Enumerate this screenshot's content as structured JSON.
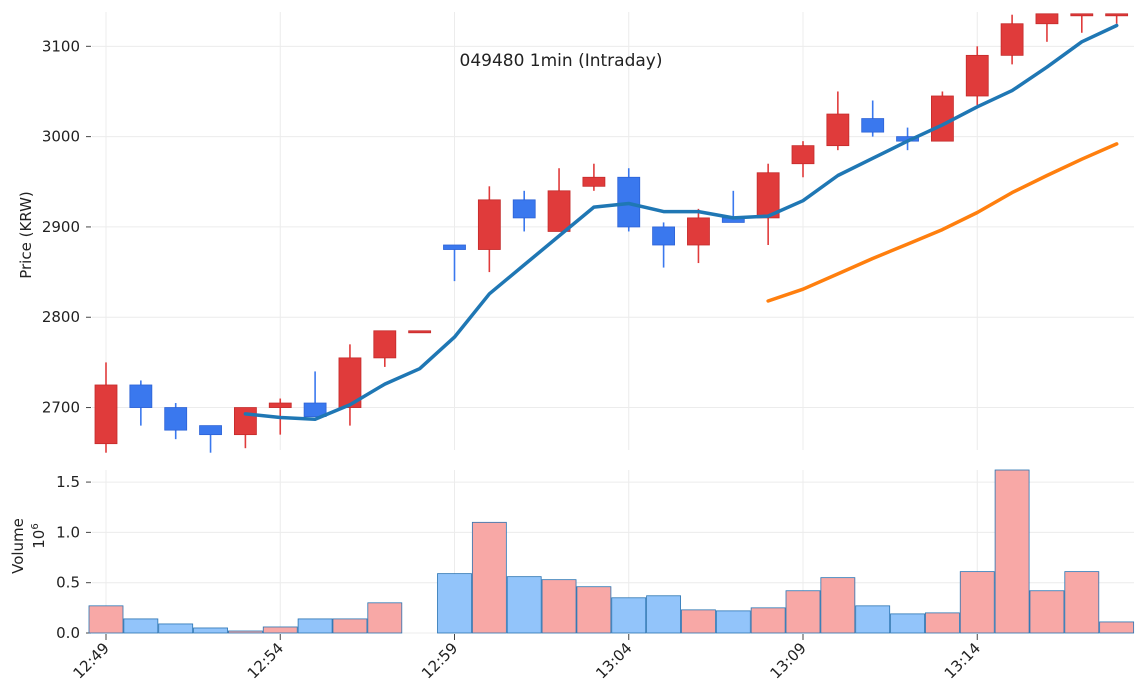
{
  "chart_data": {
    "type": "candlestick",
    "title": "049480 1min (Intraday)",
    "price_ylabel": "Price (KRW)",
    "volume_ylabel": "Volume",
    "volume_scale_label": "10^6",
    "price_yticks": [
      2700,
      2800,
      2900,
      3000,
      3100
    ],
    "price_ylim": [
      2653,
      3138
    ],
    "volume_yticks": [
      0.0,
      0.5,
      1.0,
      1.5
    ],
    "volume_ylim": [
      0,
      1.62
    ],
    "xticks": [
      {
        "index": 0,
        "label": "12:49"
      },
      {
        "index": 5,
        "label": "12:54"
      },
      {
        "index": 10,
        "label": "12:59"
      },
      {
        "index": 15,
        "label": "13:04"
      },
      {
        "index": 20,
        "label": "13:09"
      },
      {
        "index": 25,
        "label": "13:14"
      }
    ],
    "candles": [
      {
        "o": 2660,
        "h": 2750,
        "l": 2650,
        "c": 2725,
        "v": 0.27
      },
      {
        "o": 2725,
        "h": 2730,
        "l": 2680,
        "c": 2700,
        "v": 0.14
      },
      {
        "o": 2700,
        "h": 2705,
        "l": 2665,
        "c": 2675,
        "v": 0.09
      },
      {
        "o": 2680,
        "h": 2680,
        "l": 2650,
        "c": 2670,
        "v": 0.05
      },
      {
        "o": 2670,
        "h": 2700,
        "l": 2655,
        "c": 2700,
        "v": 0.02
      },
      {
        "o": 2700,
        "h": 2710,
        "l": 2670,
        "c": 2705,
        "v": 0.06
      },
      {
        "o": 2705,
        "h": 2740,
        "l": 2690,
        "c": 2690,
        "v": 0.14
      },
      {
        "o": 2700,
        "h": 2770,
        "l": 2680,
        "c": 2755,
        "v": 0.14
      },
      {
        "o": 2755,
        "h": 2785,
        "l": 2745,
        "c": 2785,
        "v": 0.3
      },
      {
        "o": 2785,
        "h": 2785,
        "l": 2785,
        "c": 2785,
        "v": 0.0
      },
      {
        "o": 2880,
        "h": 2880,
        "l": 2840,
        "c": 2875,
        "v": 0.59
      },
      {
        "o": 2875,
        "h": 2945,
        "l": 2850,
        "c": 2930,
        "v": 1.1
      },
      {
        "o": 2930,
        "h": 2940,
        "l": 2895,
        "c": 2910,
        "v": 0.56
      },
      {
        "o": 2895,
        "h": 2965,
        "l": 2895,
        "c": 2940,
        "v": 0.53
      },
      {
        "o": 2945,
        "h": 2970,
        "l": 2940,
        "c": 2955,
        "v": 0.46
      },
      {
        "o": 2955,
        "h": 2965,
        "l": 2895,
        "c": 2900,
        "v": 0.35
      },
      {
        "o": 2900,
        "h": 2905,
        "l": 2855,
        "c": 2880,
        "v": 0.37
      },
      {
        "o": 2880,
        "h": 2920,
        "l": 2860,
        "c": 2910,
        "v": 0.23
      },
      {
        "o": 2910,
        "h": 2940,
        "l": 2905,
        "c": 2905,
        "v": 0.22
      },
      {
        "o": 2910,
        "h": 2970,
        "l": 2880,
        "c": 2960,
        "v": 0.25
      },
      {
        "o": 2970,
        "h": 2995,
        "l": 2955,
        "c": 2990,
        "v": 0.42
      },
      {
        "o": 2990,
        "h": 3050,
        "l": 2985,
        "c": 3025,
        "v": 0.55
      },
      {
        "o": 3020,
        "h": 3040,
        "l": 3000,
        "c": 3005,
        "v": 0.27
      },
      {
        "o": 3000,
        "h": 3010,
        "l": 2985,
        "c": 2995,
        "v": 0.19
      },
      {
        "o": 2995,
        "h": 3050,
        "l": 2995,
        "c": 3045,
        "v": 0.2
      },
      {
        "o": 3045,
        "h": 3100,
        "l": 3035,
        "c": 3090,
        "v": 0.61
      },
      {
        "o": 3090,
        "h": 3135,
        "l": 3080,
        "c": 3125,
        "v": 1.62
      },
      {
        "o": 3125,
        "h": 3136,
        "l": 3105,
        "c": 3136,
        "v": 0.42
      },
      {
        "o": 3136,
        "h": 3136,
        "l": 3115,
        "c": 3136,
        "v": 0.61
      },
      {
        "o": 3136,
        "h": 3136,
        "l": 3125,
        "c": 3136,
        "v": 0.11
      }
    ],
    "series": [
      {
        "name": "MA (short)",
        "color": "#1f77b4",
        "start_index": 4,
        "values": [
          2693,
          2689,
          2687,
          2703,
          2726,
          2743,
          2778,
          2826,
          2858,
          2890,
          2922,
          2926,
          2917,
          2917,
          2910,
          2912,
          2929,
          2957,
          2976,
          2995,
          3013,
          3033,
          3051,
          3077,
          3105,
          3123
        ]
      },
      {
        "name": "MA (long)",
        "color": "#ff7f0e",
        "start_index": 19,
        "values": [
          2818,
          2831,
          2848,
          2865,
          2881,
          2897,
          2916,
          2938,
          2957,
          2975,
          2992
        ]
      }
    ],
    "colors": {
      "up_body": "#e03b3b",
      "down_body": "#3a78ee",
      "up_volume": "#f8a8a6",
      "down_volume": "#92c4fa",
      "volume_edge": "#2a74b2",
      "grid": "#ececec"
    }
  }
}
